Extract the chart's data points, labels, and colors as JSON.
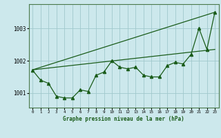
{
  "x": [
    0,
    1,
    2,
    3,
    4,
    5,
    6,
    7,
    8,
    9,
    10,
    11,
    12,
    13,
    14,
    15,
    16,
    17,
    18,
    19,
    20,
    21,
    22,
    23
  ],
  "marker_data": [
    1001.7,
    1001.4,
    1001.3,
    1000.9,
    1000.85,
    1000.85,
    1001.1,
    1001.05,
    1001.55,
    1001.65,
    1002.0,
    1001.8,
    1001.75,
    1001.8,
    1001.55,
    1001.5,
    1001.5,
    1001.85,
    1001.95,
    1001.9,
    1002.2,
    1003.0,
    1002.35,
    1003.5
  ],
  "trend1_x": [
    0,
    23
  ],
  "trend1_y": [
    1001.72,
    1003.5
  ],
  "trend2_x": [
    0,
    23
  ],
  "trend2_y": [
    1001.72,
    1002.35
  ],
  "line_color": "#1a5c1a",
  "bg_color": "#cce8ec",
  "grid_color": "#a0c8cc",
  "xlabel": "Graphe pression niveau de la mer (hPa)",
  "ylim": [
    1000.55,
    1003.75
  ],
  "yticks": [
    1001,
    1002,
    1003
  ],
  "xlim": [
    -0.5,
    23.5
  ],
  "xticks": [
    0,
    1,
    2,
    3,
    4,
    5,
    6,
    7,
    8,
    9,
    10,
    11,
    12,
    13,
    14,
    15,
    16,
    17,
    18,
    19,
    20,
    21,
    22,
    23
  ]
}
